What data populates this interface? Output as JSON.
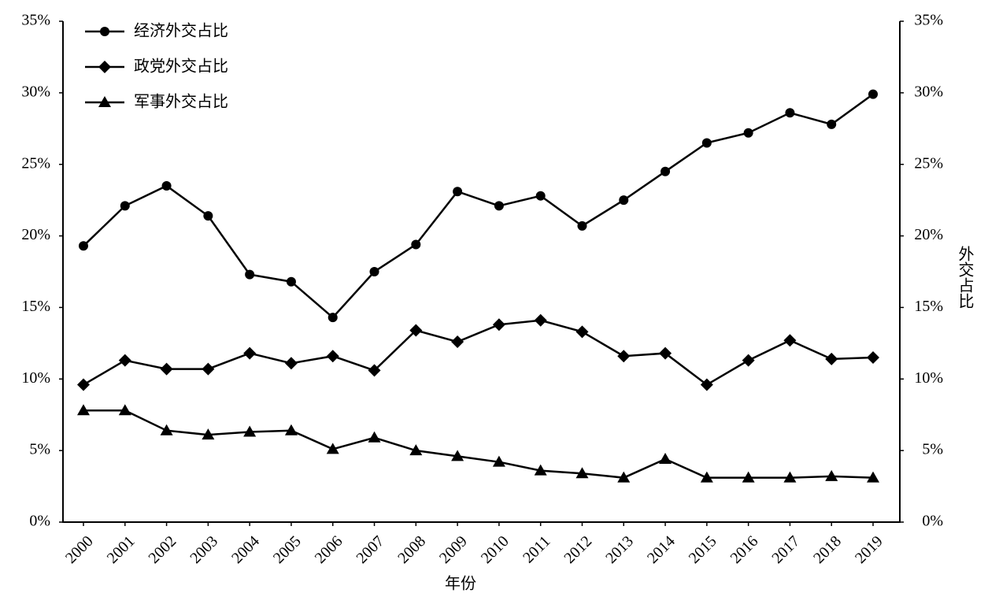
{
  "chart_data": {
    "type": "line",
    "x_label": "年份",
    "y2_label": "外交占比",
    "categories": [
      "2000",
      "2001",
      "2002",
      "2003",
      "2004",
      "2005",
      "2006",
      "2007",
      "2008",
      "2009",
      "2010",
      "2011",
      "2012",
      "2013",
      "2014",
      "2015",
      "2016",
      "2017",
      "2018",
      "2019"
    ],
    "series": [
      {
        "name": "经济外交占比",
        "color": "#000000",
        "marker": "circle",
        "values": [
          19.3,
          22.1,
          23.5,
          21.4,
          17.3,
          16.8,
          14.3,
          17.5,
          19.4,
          23.1,
          22.1,
          22.8,
          20.7,
          22.5,
          24.5,
          26.5,
          27.2,
          28.6,
          27.8,
          29.9
        ]
      },
      {
        "name": "政党外交占比",
        "color": "#000000",
        "marker": "diamond",
        "values": [
          9.6,
          11.3,
          10.7,
          10.7,
          11.8,
          11.1,
          11.6,
          10.6,
          13.4,
          12.6,
          13.8,
          14.1,
          13.3,
          11.6,
          11.8,
          9.6,
          11.3,
          12.7,
          11.4,
          11.5
        ]
      },
      {
        "name": "军事外交占比",
        "color": "#000000",
        "marker": "triangle",
        "values": [
          7.8,
          7.8,
          6.4,
          6.1,
          6.3,
          6.4,
          5.1,
          5.9,
          5.0,
          4.6,
          4.2,
          3.6,
          3.4,
          3.1,
          4.4,
          3.1,
          3.1,
          3.1,
          3.2,
          3.1
        ]
      }
    ],
    "ylim": [
      0,
      35
    ],
    "yticks": [
      {
        "value": 0,
        "label": "0%"
      },
      {
        "value": 5,
        "label": "5%"
      },
      {
        "value": 10,
        "label": "10%"
      },
      {
        "value": 15,
        "label": "15%"
      },
      {
        "value": 20,
        "label": "20%"
      },
      {
        "value": 25,
        "label": "25%"
      },
      {
        "value": 30,
        "label": "30%"
      },
      {
        "value": 35,
        "label": "35%"
      }
    ],
    "y2lim": [
      0,
      35
    ],
    "y2ticks": [
      {
        "value": 0,
        "label": "0%"
      },
      {
        "value": 5,
        "label": "5%"
      },
      {
        "value": 10,
        "label": "10%"
      },
      {
        "value": 15,
        "label": "15%"
      },
      {
        "value": 20,
        "label": "20%"
      },
      {
        "value": 25,
        "label": "25%"
      },
      {
        "value": 30,
        "label": "30%"
      },
      {
        "value": 35,
        "label": "35%"
      }
    ],
    "legend": "upper-left",
    "grid": false
  }
}
